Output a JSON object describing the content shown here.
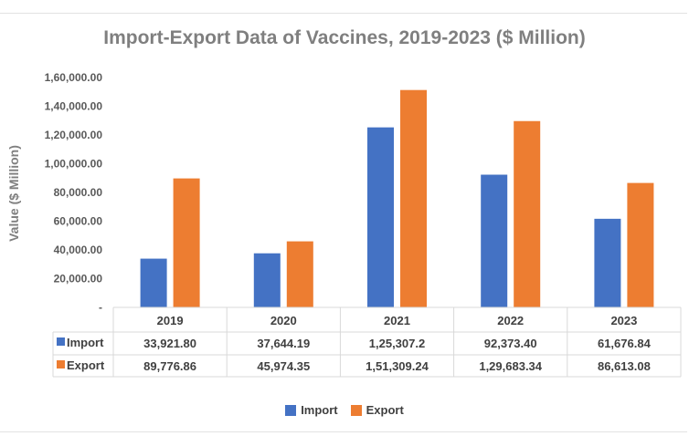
{
  "chart_data": {
    "type": "bar",
    "title": "Import-Export Data of Vaccines, 2019-2023 ($ Million)",
    "ylabel": "Value ($ Million)",
    "xlabel": "",
    "ylim": [
      0,
      160000
    ],
    "yticks": [
      0,
      20000,
      40000,
      60000,
      80000,
      100000,
      120000,
      140000,
      160000
    ],
    "ytick_labels": [
      "-",
      "20,000.00",
      "40,000.00",
      "60,000.00",
      "80,000.00",
      "1,00,000.00",
      "1,20,000.00",
      "1,40,000.00",
      "1,60,000.00"
    ],
    "categories": [
      "2019",
      "2020",
      "2021",
      "2022",
      "2023"
    ],
    "series": [
      {
        "name": "Import",
        "color": "#4472c4",
        "values": [
          33921.8,
          37644.19,
          125307.2,
          92373.4,
          61676.84
        ],
        "labels": [
          "33,921.80",
          "37,644.19",
          "1,25,307.2",
          "92,373.40",
          "61,676.84"
        ]
      },
      {
        "name": "Export",
        "color": "#ed7d31",
        "values": [
          89776.86,
          45974.35,
          151309.24,
          129683.34,
          86613.08
        ],
        "labels": [
          "89,776.86",
          "45,974.35",
          "1,51,309.24",
          "1,29,683.34",
          "86,613.08"
        ]
      }
    ],
    "grid": false,
    "legend_position": "bottom",
    "data_table": true
  }
}
